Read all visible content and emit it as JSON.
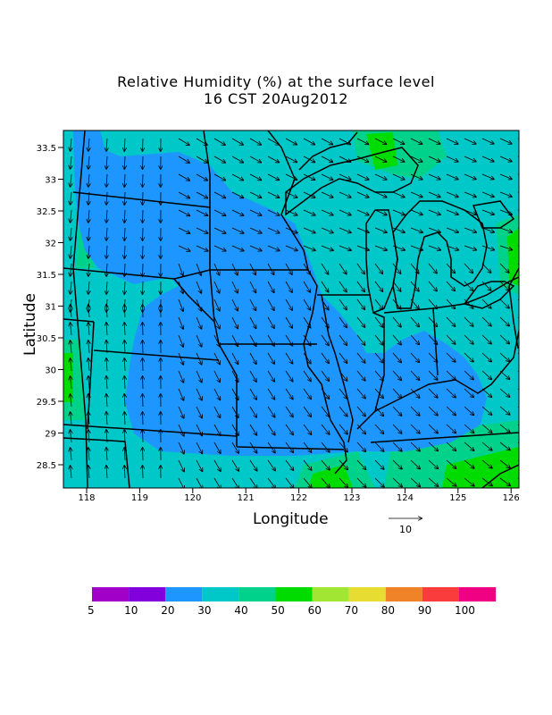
{
  "title_line1": "Relative Humidity (%) at the surface level",
  "title_line2": "16 CST 20Aug2012",
  "xlabel": "Longitude",
  "ylabel": "Latitude",
  "x_ticks": [
    "118",
    "119",
    "120",
    "121",
    "122",
    "123",
    "124",
    "125",
    "126"
  ],
  "y_ticks": [
    "33.5",
    "33",
    "32.5",
    "32",
    "31.5",
    "31",
    "30.5",
    "30",
    "29.5",
    "29",
    "28.5"
  ],
  "reference_vector_label": "10",
  "colorbar": {
    "labels": [
      "5",
      "10",
      "20",
      "30",
      "40",
      "50",
      "60",
      "70",
      "80",
      "90",
      "100"
    ],
    "colors": [
      "#a000c8",
      "#8200dc",
      "#1e96ff",
      "#00c8c8",
      "#00d28c",
      "#00dc00",
      "#a0e632",
      "#e6dc32",
      "#f08228",
      "#fa3c3c",
      "#f00082"
    ]
  },
  "colors": {
    "rh_20_30": "#1e96ff",
    "rh_30_40": "#00c8c8",
    "rh_40_50": "#00d28c",
    "rh_50_60": "#00dc00"
  }
}
